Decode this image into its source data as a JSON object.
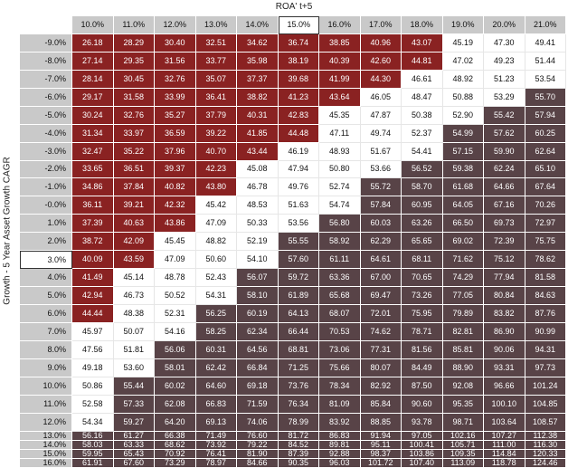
{
  "chart_data": {
    "type": "heatmap",
    "title": "ROA' t+5",
    "xlabel": "ROA' t+5",
    "ylabel": "Growth - 5 Year Asset Growth CAGR",
    "columns": [
      "10.0%",
      "11.0%",
      "12.0%",
      "13.0%",
      "14.0%",
      "15.0%",
      "16.0%",
      "17.0%",
      "18.0%",
      "19.0%",
      "20.0%",
      "21.0%"
    ],
    "rows": [
      "-9.0%",
      "-8.0%",
      "-7.0%",
      "-6.0%",
      "-5.0%",
      "-4.0%",
      "-3.0%",
      "-2.0%",
      "-1.0%",
      "-0.0%",
      "1.0%",
      "2.0%",
      "3.0%",
      "4.0%",
      "5.0%",
      "6.0%",
      "7.0%",
      "8.0%",
      "9.0%",
      "10.0%",
      "11.0%",
      "12.0%",
      "13.0%",
      "14.0%",
      "15.0%",
      "16.0%"
    ],
    "selected_column": "15.0%",
    "selected_row": "3.0%",
    "colors": {
      "below": "#8a2222",
      "middle": "#ffffff",
      "above": "#584347",
      "header": "#c9c9c9"
    },
    "values": [
      [
        "26.18",
        "28.29",
        "30.40",
        "32.51",
        "34.62",
        "36.74",
        "38.85",
        "40.96",
        "43.07",
        "45.19",
        "47.30",
        "49.41"
      ],
      [
        "27.14",
        "29.35",
        "31.56",
        "33.77",
        "35.98",
        "38.19",
        "40.39",
        "42.60",
        "44.81",
        "47.02",
        "49.23",
        "51.44"
      ],
      [
        "28.14",
        "30.45",
        "32.76",
        "35.07",
        "37.37",
        "39.68",
        "41.99",
        "44.30",
        "46.61",
        "48.92",
        "51.23",
        "53.54"
      ],
      [
        "29.17",
        "31.58",
        "33.99",
        "36.41",
        "38.82",
        "41.23",
        "43.64",
        "46.05",
        "48.47",
        "50.88",
        "53.29",
        "55.70"
      ],
      [
        "30.24",
        "32.76",
        "35.27",
        "37.79",
        "40.31",
        "42.83",
        "45.35",
        "47.87",
        "50.38",
        "52.90",
        "55.42",
        "57.94"
      ],
      [
        "31.34",
        "33.97",
        "36.59",
        "39.22",
        "41.85",
        "44.48",
        "47.11",
        "49.74",
        "52.37",
        "54.99",
        "57.62",
        "60.25"
      ],
      [
        "32.47",
        "35.22",
        "37.96",
        "40.70",
        "43.44",
        "46.19",
        "48.93",
        "51.67",
        "54.41",
        "57.15",
        "59.90",
        "62.64"
      ],
      [
        "33.65",
        "36.51",
        "39.37",
        "42.23",
        "45.08",
        "47.94",
        "50.80",
        "53.66",
        "56.52",
        "59.38",
        "62.24",
        "65.10"
      ],
      [
        "34.86",
        "37.84",
        "40.82",
        "43.80",
        "46.78",
        "49.76",
        "52.74",
        "55.72",
        "58.70",
        "61.68",
        "64.66",
        "67.64"
      ],
      [
        "36.11",
        "39.21",
        "42.32",
        "45.42",
        "48.53",
        "51.63",
        "54.74",
        "57.84",
        "60.95",
        "64.05",
        "67.16",
        "70.26"
      ],
      [
        "37.39",
        "40.63",
        "43.86",
        "47.09",
        "50.33",
        "53.56",
        "56.80",
        "60.03",
        "63.26",
        "66.50",
        "69.73",
        "72.97"
      ],
      [
        "38.72",
        "42.09",
        "45.45",
        "48.82",
        "52.19",
        "55.55",
        "58.92",
        "62.29",
        "65.65",
        "69.02",
        "72.39",
        "75.75"
      ],
      [
        "40.09",
        "43.59",
        "47.09",
        "50.60",
        "54.10",
        "57.60",
        "61.11",
        "64.61",
        "68.11",
        "71.62",
        "75.12",
        "78.62"
      ],
      [
        "41.49",
        "45.14",
        "48.78",
        "52.43",
        "56.07",
        "59.72",
        "63.36",
        "67.00",
        "70.65",
        "74.29",
        "77.94",
        "81.58"
      ],
      [
        "42.94",
        "46.73",
        "50.52",
        "54.31",
        "58.10",
        "61.89",
        "65.68",
        "69.47",
        "73.26",
        "77.05",
        "80.84",
        "84.63"
      ],
      [
        "44.44",
        "48.38",
        "52.31",
        "56.25",
        "60.19",
        "64.13",
        "68.07",
        "72.01",
        "75.95",
        "79.89",
        "83.82",
        "87.76"
      ],
      [
        "45.97",
        "50.07",
        "54.16",
        "58.25",
        "62.34",
        "66.44",
        "70.53",
        "74.62",
        "78.71",
        "82.81",
        "86.90",
        "90.99"
      ],
      [
        "47.56",
        "51.81",
        "56.06",
        "60.31",
        "64.56",
        "68.81",
        "73.06",
        "77.31",
        "81.56",
        "85.81",
        "90.06",
        "94.31"
      ],
      [
        "49.18",
        "53.60",
        "58.01",
        "62.42",
        "66.84",
        "71.25",
        "75.66",
        "80.07",
        "84.49",
        "88.90",
        "93.31",
        "97.73"
      ],
      [
        "50.86",
        "55.44",
        "60.02",
        "64.60",
        "69.18",
        "73.76",
        "78.34",
        "82.92",
        "87.50",
        "92.08",
        "96.66",
        "101.24"
      ],
      [
        "52.58",
        "57.33",
        "62.08",
        "66.83",
        "71.59",
        "76.34",
        "81.09",
        "85.84",
        "90.60",
        "95.35",
        "100.10",
        "104.85"
      ],
      [
        "54.34",
        "59.27",
        "64.20",
        "69.13",
        "74.06",
        "78.99",
        "83.92",
        "88.85",
        "93.78",
        "98.71",
        "103.64",
        "108.57"
      ],
      [
        "56.16",
        "61.27",
        "66.38",
        "71.49",
        "76.60",
        "81.72",
        "86.83",
        "91.94",
        "97.05",
        "102.16",
        "107.27",
        "112.38"
      ],
      [
        "58.03",
        "63.33",
        "68.62",
        "73.92",
        "79.22",
        "84.52",
        "89.81",
        "95.11",
        "100.41",
        "105.71",
        "111.00",
        "116.30"
      ],
      [
        "59.95",
        "65.43",
        "70.92",
        "76.41",
        "81.90",
        "87.39",
        "92.88",
        "98.37",
        "103.86",
        "109.35",
        "114.84",
        "120.33"
      ],
      [
        "61.91",
        "67.60",
        "73.29",
        "78.97",
        "84.66",
        "90.35",
        "96.03",
        "101.72",
        "107.40",
        "113.09",
        "118.78",
        "124.46"
      ]
    ],
    "categories": [
      [
        "red",
        "red",
        "red",
        "red",
        "red",
        "red",
        "red",
        "red",
        "red",
        "white",
        "white",
        "white"
      ],
      [
        "red",
        "red",
        "red",
        "red",
        "red",
        "red",
        "red",
        "red",
        "red",
        "white",
        "white",
        "white"
      ],
      [
        "red",
        "red",
        "red",
        "red",
        "red",
        "red",
        "red",
        "red",
        "white",
        "white",
        "white",
        "white"
      ],
      [
        "red",
        "red",
        "red",
        "red",
        "red",
        "red",
        "red",
        "white",
        "white",
        "white",
        "white",
        "dark"
      ],
      [
        "red",
        "red",
        "red",
        "red",
        "red",
        "red",
        "white",
        "white",
        "white",
        "white",
        "dark",
        "dark"
      ],
      [
        "red",
        "red",
        "red",
        "red",
        "red",
        "red",
        "white",
        "white",
        "white",
        "dark",
        "dark",
        "dark"
      ],
      [
        "red",
        "red",
        "red",
        "red",
        "red",
        "white",
        "white",
        "white",
        "white",
        "dark",
        "dark",
        "dark"
      ],
      [
        "red",
        "red",
        "red",
        "red",
        "white",
        "white",
        "white",
        "white",
        "dark",
        "dark",
        "dark",
        "dark"
      ],
      [
        "red",
        "red",
        "red",
        "red",
        "white",
        "white",
        "white",
        "dark",
        "dark",
        "dark",
        "dark",
        "dark"
      ],
      [
        "red",
        "red",
        "red",
        "white",
        "white",
        "white",
        "white",
        "dark",
        "dark",
        "dark",
        "dark",
        "dark"
      ],
      [
        "red",
        "red",
        "red",
        "white",
        "white",
        "white",
        "dark",
        "dark",
        "dark",
        "dark",
        "dark",
        "dark"
      ],
      [
        "red",
        "red",
        "white",
        "white",
        "white",
        "dark",
        "dark",
        "dark",
        "dark",
        "dark",
        "dark",
        "dark"
      ],
      [
        "red",
        "red",
        "white",
        "white",
        "white",
        "dark",
        "dark",
        "dark",
        "dark",
        "dark",
        "dark",
        "dark"
      ],
      [
        "red",
        "white",
        "white",
        "white",
        "dark",
        "dark",
        "dark",
        "dark",
        "dark",
        "dark",
        "dark",
        "dark"
      ],
      [
        "red",
        "white",
        "white",
        "white",
        "dark",
        "dark",
        "dark",
        "dark",
        "dark",
        "dark",
        "dark",
        "dark"
      ],
      [
        "red",
        "white",
        "white",
        "dark",
        "dark",
        "dark",
        "dark",
        "dark",
        "dark",
        "dark",
        "dark",
        "dark"
      ],
      [
        "white",
        "white",
        "white",
        "dark",
        "dark",
        "dark",
        "dark",
        "dark",
        "dark",
        "dark",
        "dark",
        "dark"
      ],
      [
        "white",
        "white",
        "dark",
        "dark",
        "dark",
        "dark",
        "dark",
        "dark",
        "dark",
        "dark",
        "dark",
        "dark"
      ],
      [
        "white",
        "white",
        "dark",
        "dark",
        "dark",
        "dark",
        "dark",
        "dark",
        "dark",
        "dark",
        "dark",
        "dark"
      ],
      [
        "white",
        "dark",
        "dark",
        "dark",
        "dark",
        "dark",
        "dark",
        "dark",
        "dark",
        "dark",
        "dark",
        "dark"
      ],
      [
        "white",
        "dark",
        "dark",
        "dark",
        "dark",
        "dark",
        "dark",
        "dark",
        "dark",
        "dark",
        "dark",
        "dark"
      ],
      [
        "white",
        "dark",
        "dark",
        "dark",
        "dark",
        "dark",
        "dark",
        "dark",
        "dark",
        "dark",
        "dark",
        "dark"
      ],
      [
        "dark",
        "dark",
        "dark",
        "dark",
        "dark",
        "dark",
        "dark",
        "dark",
        "dark",
        "dark",
        "dark",
        "dark"
      ],
      [
        "dark",
        "dark",
        "dark",
        "dark",
        "dark",
        "dark",
        "dark",
        "dark",
        "dark",
        "dark",
        "dark",
        "dark"
      ],
      [
        "dark",
        "dark",
        "dark",
        "dark",
        "dark",
        "dark",
        "dark",
        "dark",
        "dark",
        "dark",
        "dark",
        "dark"
      ],
      [
        "dark",
        "dark",
        "dark",
        "dark",
        "dark",
        "dark",
        "dark",
        "dark",
        "dark",
        "dark",
        "dark",
        "dark"
      ]
    ]
  }
}
